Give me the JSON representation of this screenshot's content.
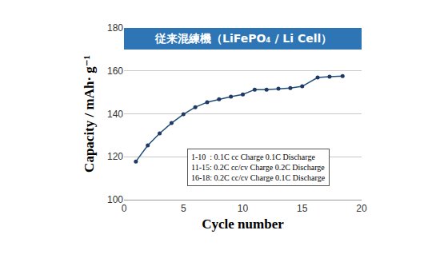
{
  "chart_data": {
    "type": "line",
    "title": "従来混練機（LiFePO₄ / Li Cell）",
    "x_label": "Cycle number",
    "y_label": "Capacity / mAh· g⁻¹",
    "x": [
      1,
      2,
      3,
      4,
      5,
      6,
      7,
      8,
      9,
      10,
      11,
      12,
      13,
      14,
      15,
      16.3,
      17.3,
      18.4
    ],
    "values": [
      117.8,
      125.3,
      130.9,
      135.7,
      139.8,
      143.1,
      145.4,
      146.8,
      148,
      149,
      151.3,
      151.3,
      151.7,
      152,
      152.8,
      156.9,
      157.3,
      157.6
    ],
    "color": "#1f4e79",
    "marker": "circle",
    "line_style": "solid",
    "xlim": [
      0,
      20
    ],
    "xticks": [
      0,
      5,
      10,
      15,
      20
    ],
    "ylim": [
      100,
      180
    ],
    "yticks": [
      100,
      120,
      140,
      160,
      180
    ],
    "grid": true,
    "annotations": [
      "1-10  : 0.1C cc Charge 0.1C Discharge",
      "11-15: 0.2C cc/cv Charge 0.2C Discharge",
      "16-18: 0.2C cc/cv Charge 0.1C Discharge"
    ]
  }
}
